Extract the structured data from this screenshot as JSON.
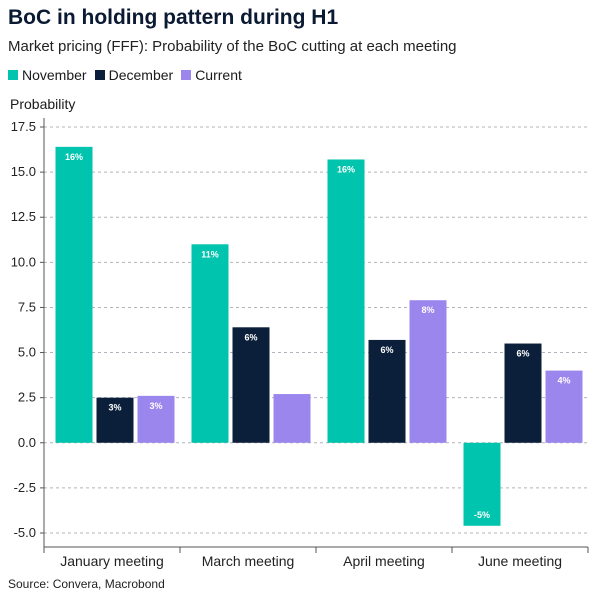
{
  "header": {
    "title": "BoC in holding pattern during H1",
    "subtitle": "Market pricing (FFF): Probability of the BoC cutting at each meeting",
    "source": "Source: Convera, Macrobond"
  },
  "colors": {
    "november": "#00c4ad",
    "december": "#0b1f3a",
    "current": "#9b86ee",
    "grid": "#b0b4bc"
  },
  "chart_data": {
    "type": "bar",
    "title": "BoC in holding pattern during H1",
    "subtitle": "Market pricing (FFF): Probability of the BoC cutting at each meeting",
    "ylabel": "Probability",
    "ylim": [
      -5.0,
      17.5
    ],
    "yticks": [
      "17.5",
      "15.0",
      "12.5",
      "10.0",
      "7.5",
      "5.0",
      "2.5",
      "0.0",
      "-2.5",
      "-5.0"
    ],
    "ytick_values": [
      17.5,
      15.0,
      12.5,
      10.0,
      7.5,
      5.0,
      2.5,
      0.0,
      -2.5,
      -5.0
    ],
    "grid": true,
    "legend_position": "top-left",
    "categories": [
      "January meeting",
      "March meeting",
      "April meeting",
      "June meeting"
    ],
    "series": [
      {
        "name": "November",
        "values": [
          16.4,
          11.0,
          15.7,
          -4.6
        ],
        "labels": [
          "16%",
          "11%",
          "16%",
          "-5%"
        ]
      },
      {
        "name": "December",
        "values": [
          2.5,
          6.4,
          5.7,
          5.5
        ],
        "labels": [
          "3%",
          "6%",
          "6%",
          "6%"
        ]
      },
      {
        "name": "Current",
        "values": [
          2.6,
          2.7,
          7.9,
          4.0
        ],
        "labels": [
          "3%",
          "",
          "8%",
          "4%"
        ]
      }
    ]
  }
}
